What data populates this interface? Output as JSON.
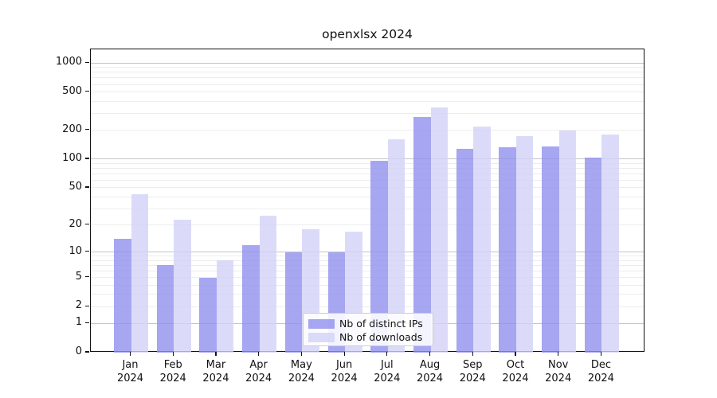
{
  "title": "openxlsx 2024",
  "chart_data": {
    "type": "bar",
    "title": "openxlsx 2024",
    "categories": [
      "Jan",
      "Feb",
      "Mar",
      "Apr",
      "May",
      "Jun",
      "Jul",
      "Aug",
      "Sep",
      "Oct",
      "Nov",
      "Dec"
    ],
    "category_year": "2024",
    "series": [
      {
        "name": "Nb of distinct IPs",
        "color": "#9090ee",
        "values": [
          14,
          7,
          5,
          12,
          10,
          10,
          97,
          277,
          129,
          132,
          135,
          103
        ]
      },
      {
        "name": "Nb of downloads",
        "color": "#d2d2f8",
        "values": [
          43,
          23,
          8,
          25,
          18,
          17,
          160,
          345,
          220,
          173,
          199,
          180
        ]
      }
    ],
    "xlabel": "",
    "ylabel": "",
    "y_axis": {
      "scale": "log1p",
      "ticks": [
        0,
        1,
        2,
        5,
        10,
        20,
        50,
        100,
        200,
        500,
        1000
      ],
      "major_gridlines": [
        1,
        10,
        100,
        1000
      ],
      "max": 1385
    },
    "grid": true,
    "legend_position": "bottom-center"
  },
  "colors": {
    "bar_distinct_ips": "#9090ee",
    "bar_downloads": "#d2d2f8",
    "major_grid": "#c6c6c6",
    "minor_grid": "#ededed",
    "axis": "#111111",
    "text": "#111111",
    "background": "#ffffff"
  }
}
